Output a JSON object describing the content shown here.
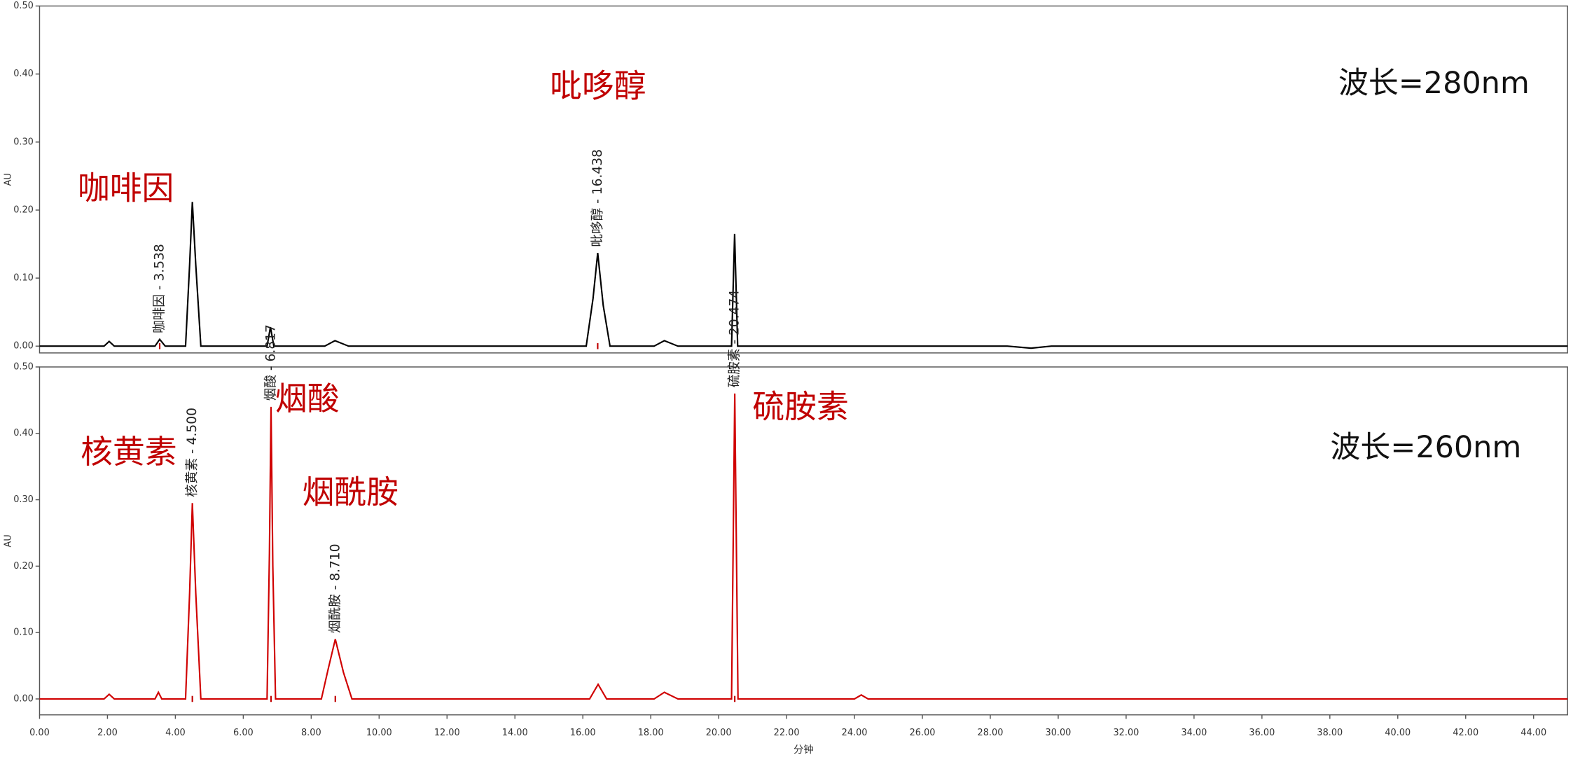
{
  "chart_data": [
    {
      "type": "line",
      "ylabel": "AU",
      "annotation": "波长=280nm",
      "xlim": [
        0,
        45
      ],
      "ylim": [
        -0.01,
        0.5
      ],
      "yticks": [
        {
          "value": 0,
          "label": "0.00"
        },
        {
          "value": 0.1,
          "label": "0.10"
        },
        {
          "value": 0.2,
          "label": "0.20"
        },
        {
          "value": 0.3,
          "label": "0.30"
        },
        {
          "value": 0.4,
          "label": "0.40"
        },
        {
          "value": 0.5,
          "label": "0.50"
        }
      ],
      "x": [
        0,
        1.9,
        2.05,
        2.2,
        3.4,
        3.538,
        3.7,
        4.3,
        4.42,
        4.5,
        4.6,
        4.75,
        6.7,
        6.8,
        6.9,
        8.4,
        8.7,
        9.1,
        16.1,
        16.3,
        16.438,
        16.6,
        16.8,
        18.1,
        18.4,
        18.8,
        20.38,
        20.47,
        20.56,
        28.5,
        29.2,
        29.8,
        45
      ],
      "series": [
        {
          "color": "#000000",
          "values": [
            0,
            0,
            0.007,
            0,
            0,
            0.01,
            0,
            0,
            0.12,
            0.212,
            0.12,
            0,
            0,
            0.028,
            0,
            0,
            0.008,
            0,
            0,
            0.07,
            0.137,
            0.06,
            0,
            0,
            0.008,
            0,
            0,
            0.165,
            0,
            0,
            -0.003,
            0,
            0
          ]
        }
      ],
      "peaks": [
        {
          "name": "咖啡因",
          "label": "咖啡因 - 3.538",
          "x": 3.538
        },
        {
          "name": "吡哆醇",
          "label": "吡哆醇 - 16.438",
          "x": 16.438
        }
      ]
    },
    {
      "type": "line",
      "ylabel": "AU",
      "xlabel": "分钟",
      "annotation": "波长=260nm",
      "xlim": [
        0,
        45
      ],
      "ylim": [
        -0.024,
        0.5
      ],
      "yticks": [
        {
          "value": 0,
          "label": "0.00"
        },
        {
          "value": 0.1,
          "label": "0.10"
        },
        {
          "value": 0.2,
          "label": "0.20"
        },
        {
          "value": 0.3,
          "label": "0.30"
        },
        {
          "value": 0.4,
          "label": "0.40"
        },
        {
          "value": 0.5,
          "label": "0.50"
        }
      ],
      "xticks": [
        {
          "value": 0,
          "label": "0.00"
        },
        {
          "value": 2,
          "label": "2.00"
        },
        {
          "value": 4,
          "label": "4.00"
        },
        {
          "value": 6,
          "label": "6.00"
        },
        {
          "value": 8,
          "label": "8.00"
        },
        {
          "value": 10,
          "label": "10.00"
        },
        {
          "value": 12,
          "label": "12.00"
        },
        {
          "value": 14,
          "label": "14.00"
        },
        {
          "value": 16,
          "label": "16.00"
        },
        {
          "value": 18,
          "label": "18.00"
        },
        {
          "value": 20,
          "label": "20.00"
        },
        {
          "value": 22,
          "label": "22.00"
        },
        {
          "value": 24,
          "label": "24.00"
        },
        {
          "value": 26,
          "label": "26.00"
        },
        {
          "value": 28,
          "label": "28.00"
        },
        {
          "value": 30,
          "label": "30.00"
        },
        {
          "value": 32,
          "label": "32.00"
        },
        {
          "value": 34,
          "label": "34.00"
        },
        {
          "value": 36,
          "label": "36.00"
        },
        {
          "value": 38,
          "label": "38.00"
        },
        {
          "value": 40,
          "label": "40.00"
        },
        {
          "value": 42,
          "label": "42.00"
        },
        {
          "value": 44,
          "label": "44.00"
        }
      ],
      "x": [
        0,
        1.9,
        2.05,
        2.2,
        3.4,
        3.5,
        3.6,
        4.3,
        4.42,
        4.5,
        4.6,
        4.75,
        6.7,
        6.77,
        6.817,
        6.87,
        6.95,
        8.3,
        8.5,
        8.71,
        8.95,
        9.2,
        16.2,
        16.45,
        16.7,
        18.1,
        18.4,
        18.8,
        20.38,
        20.474,
        20.57,
        24.0,
        24.2,
        24.4,
        45
      ],
      "series": [
        {
          "color": "#d00000",
          "values": [
            0,
            0,
            0.007,
            0,
            0,
            0.01,
            0,
            0,
            0.16,
            0.295,
            0.16,
            0,
            0,
            0.22,
            0.44,
            0.2,
            0,
            0,
            0.045,
            0.09,
            0.04,
            0,
            0,
            0.022,
            0,
            0,
            0.01,
            0,
            0,
            0.46,
            0,
            0,
            0.006,
            0,
            0
          ]
        }
      ],
      "peaks": [
        {
          "name": "核黄素",
          "label": "核黄素 - 4.500",
          "x": 4.5
        },
        {
          "name": "烟酸",
          "label": "烟酸 - 6.817",
          "x": 6.817
        },
        {
          "name": "烟酰胺",
          "label": "烟酰胺 - 8.710",
          "x": 8.71
        },
        {
          "name": "硫胺素",
          "label": "硫胺素 - 20.474",
          "x": 20.474
        }
      ]
    }
  ]
}
